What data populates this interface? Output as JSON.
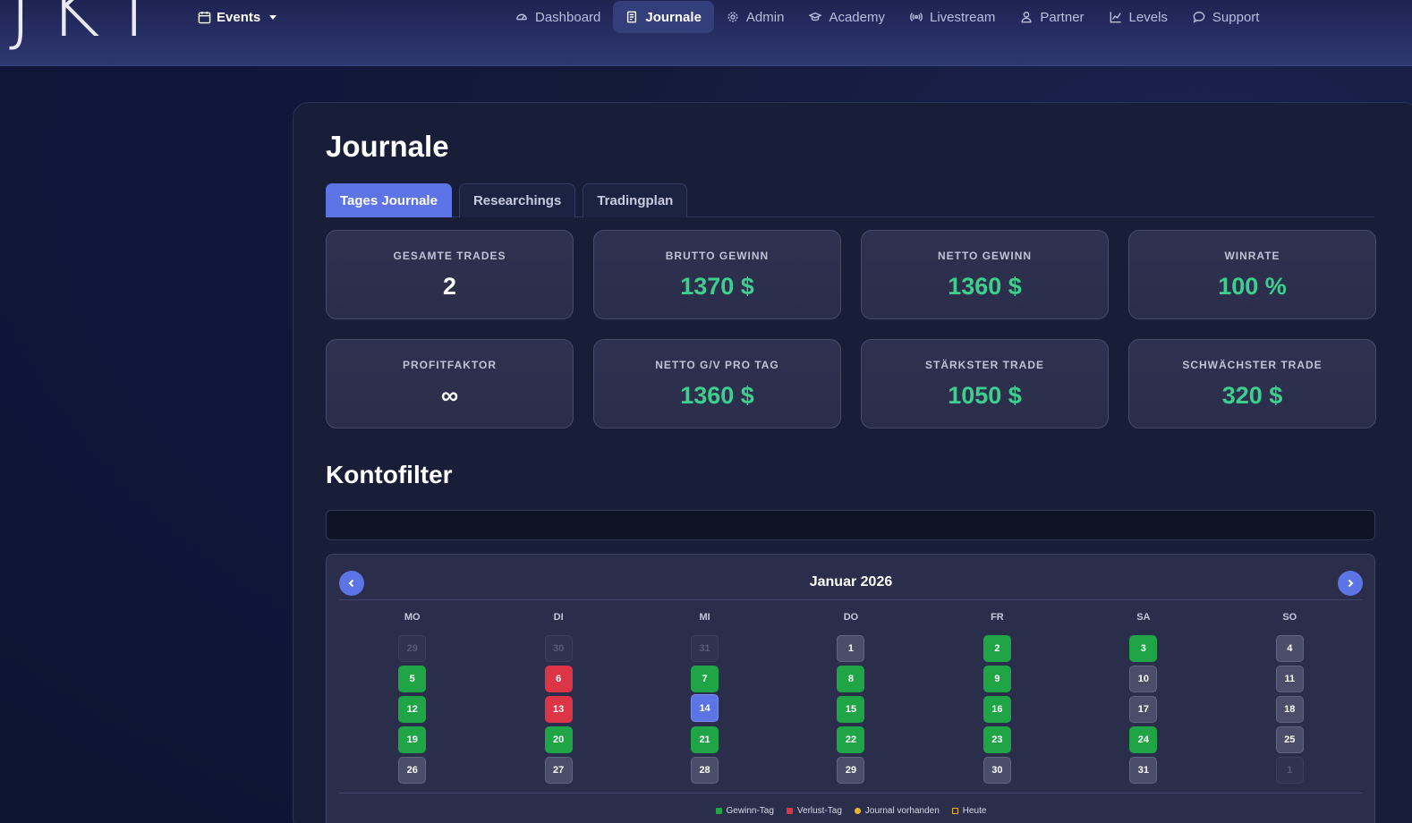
{
  "brand": {
    "logo_text": "JKT"
  },
  "nav": {
    "events_label": "Events",
    "items": [
      {
        "label": "Dashboard",
        "icon": "gauge-icon"
      },
      {
        "label": "Journale",
        "icon": "journal-icon",
        "active": true
      },
      {
        "label": "Admin",
        "icon": "gear-icon"
      },
      {
        "label": "Academy",
        "icon": "graduation-cap-icon"
      },
      {
        "label": "Livestream",
        "icon": "broadcast-icon"
      },
      {
        "label": "Partner",
        "icon": "person-icon"
      },
      {
        "label": "Levels",
        "icon": "line-chart-icon"
      },
      {
        "label": "Support",
        "icon": "chat-icon"
      }
    ]
  },
  "page": {
    "title": "Journale",
    "tabs": [
      "Tages Journale",
      "Researchings",
      "Tradingplan"
    ],
    "active_tab": "Tages Journale"
  },
  "stats": [
    {
      "label": "GESAMTE TRADES",
      "value": "2"
    },
    {
      "label": "BRUTTO GEWINN",
      "value": "1370 $"
    },
    {
      "label": "NETTO GEWINN",
      "value": "1360 $"
    },
    {
      "label": "WINRATE",
      "value": "100 %"
    },
    {
      "label": "PROFITFAKTOR",
      "value": "∞"
    },
    {
      "label": "NETTO G/V PRO TAG",
      "value": "1360 $"
    },
    {
      "label": "STÄRKSTER TRADE",
      "value": "1050 $"
    },
    {
      "label": "SCHWÄCHSTER TRADE",
      "value": "320 $"
    }
  ],
  "filter": {
    "title": "Kontofilter",
    "value": ""
  },
  "calendar": {
    "month_label": "Januar 2026",
    "weekdays": [
      "MO",
      "DI",
      "MI",
      "DO",
      "FR",
      "SA",
      "SO"
    ],
    "weeks": [
      [
        {
          "d": "29",
          "s": "other"
        },
        {
          "d": "30",
          "s": "other"
        },
        {
          "d": "31",
          "s": "other"
        },
        {
          "d": "1",
          "s": "neutral"
        },
        {
          "d": "2",
          "s": "win"
        },
        {
          "d": "3",
          "s": "win"
        },
        {
          "d": "4",
          "s": "neutral"
        }
      ],
      [
        {
          "d": "5",
          "s": "win"
        },
        {
          "d": "6",
          "s": "loss"
        },
        {
          "d": "7",
          "s": "win"
        },
        {
          "d": "8",
          "s": "win"
        },
        {
          "d": "9",
          "s": "win"
        },
        {
          "d": "10",
          "s": "neutral"
        },
        {
          "d": "11",
          "s": "neutral"
        }
      ],
      [
        {
          "d": "12",
          "s": "win"
        },
        {
          "d": "13",
          "s": "loss"
        },
        {
          "d": "14",
          "s": "today"
        },
        {
          "d": "15",
          "s": "win"
        },
        {
          "d": "16",
          "s": "win"
        },
        {
          "d": "17",
          "s": "neutral"
        },
        {
          "d": "18",
          "s": "neutral"
        }
      ],
      [
        {
          "d": "19",
          "s": "win"
        },
        {
          "d": "20",
          "s": "win"
        },
        {
          "d": "21",
          "s": "win"
        },
        {
          "d": "22",
          "s": "win"
        },
        {
          "d": "23",
          "s": "win"
        },
        {
          "d": "24",
          "s": "win"
        },
        {
          "d": "25",
          "s": "neutral"
        }
      ],
      [
        {
          "d": "26",
          "s": "neutral"
        },
        {
          "d": "27",
          "s": "neutral"
        },
        {
          "d": "28",
          "s": "neutral"
        },
        {
          "d": "29",
          "s": "neutral"
        },
        {
          "d": "30",
          "s": "neutral"
        },
        {
          "d": "31",
          "s": "neutral"
        },
        {
          "d": "1",
          "s": "other"
        }
      ]
    ],
    "legend": [
      {
        "label": "Gewinn-Tag",
        "type": "win"
      },
      {
        "label": "Verlust-Tag",
        "type": "loss"
      },
      {
        "label": "Journal vorhanden",
        "type": "journal"
      },
      {
        "label": "Heute",
        "type": "today"
      }
    ]
  },
  "colors": {
    "accent": "#5c74e6",
    "profit": "#3ecf8e",
    "win_day": "#1fa446",
    "loss_day": "#dc3545",
    "journal_dot": "#f0b429"
  }
}
